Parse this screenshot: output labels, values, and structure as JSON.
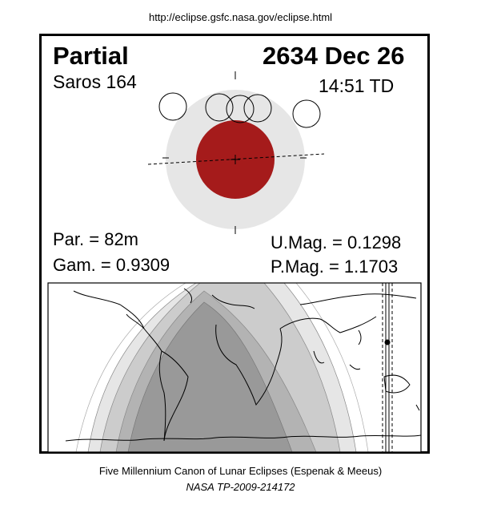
{
  "header": {
    "url": "http://eclipse.gsfc.nasa.gov/eclipse.html"
  },
  "eclipse": {
    "type": "Partial",
    "date": "2634 Dec 26",
    "saros": "Saros 164",
    "time": "14:51 TD",
    "par": "Par. =  82m",
    "gam": "Gam. = 0.9309",
    "umag": "U.Mag. = 0.1298",
    "pmag": "P.Mag. = 1.1703"
  },
  "colors": {
    "umbra": "#a51b1b",
    "penumbra": "#e6e6e6",
    "map_umbral_zone": "#999999",
    "map_zone_2": "#b3b3b3",
    "map_zone_3": "#cccccc",
    "map_zone_4": "#e6e6e6"
  },
  "icons": {
    "moon_positions": "moon-outline-icon",
    "subsolar_point": "black-dot-icon"
  },
  "footer": {
    "line1": "Five Millennium Canon of Lunar Eclipses (Espenak & Meeus)",
    "line2": "NASA TP-2009-214172"
  }
}
